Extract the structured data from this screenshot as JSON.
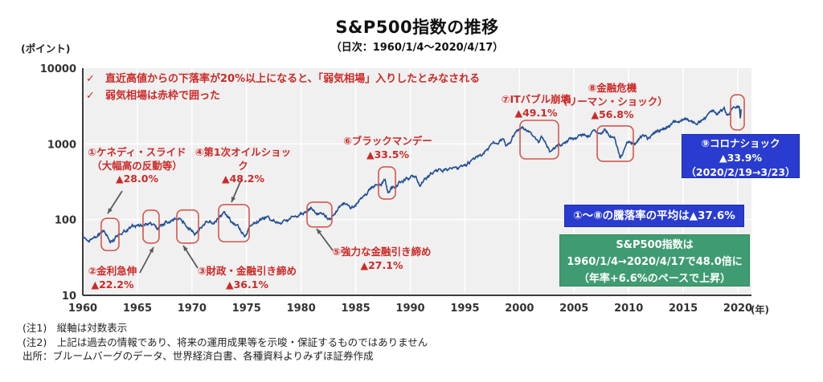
{
  "header": {
    "title": "S&P500指数の推移",
    "subtitle": "（日次：1960/1/4～2020/4/17）"
  },
  "bear_market_notes": {
    "check_icon": "✓",
    "lines": [
      "直近高値からの下落率が20%以上になると、「弱気相場」入りしたとみなされる",
      "弱気相場は赤枠で囲った"
    ]
  },
  "avg_box": {
    "text": "①～⑧の騰落率の平均は▲37.6%"
  },
  "corona_box": {
    "lines": [
      "⑨コロナショック",
      "▲33.9%",
      "（2020/2/19→3/23）"
    ]
  },
  "growth_box": {
    "lines": [
      "S&P500指数は",
      "1960/1/4→2020/4/17で48.0倍に",
      "（年率+6.6%のペースで上昇）"
    ]
  },
  "footnotes": {
    "lines": [
      "(注1)　縦軸は対数表示",
      "(注2)　上記は過去の情報であり、将来の運用成果等を示唆・保証するものではありません",
      "出所：ブルームバーグのデータ、世界経済白書、各種資料よりみずほ証券作成"
    ]
  },
  "colors": {
    "line": "#1f4e94",
    "red_text": "#cc2a27",
    "red_box": "#d4574e",
    "blue_box": "#2a3ccf",
    "green_box": "#3f9b72",
    "plot_bg": "#f0f0f0",
    "grid": "#ffffff",
    "axis": "#3c3c3c",
    "arrow": "#5a5a5a"
  },
  "chart_data": {
    "type": "line",
    "title": "S&P500指数の推移",
    "ylabel_unit": "(ポイント)",
    "xlabel_unit": "(年)",
    "y_scale": "log",
    "ylim": [
      10,
      10000
    ],
    "xlim": [
      1960,
      2021.25
    ],
    "y_ticks": [
      10000,
      1000,
      100,
      10
    ],
    "x_ticks": [
      1960,
      1965,
      1970,
      1975,
      1980,
      1985,
      1990,
      1995,
      2000,
      2005,
      2010,
      2015,
      2020
    ],
    "h_gridlines": [
      100,
      1000
    ],
    "legend_position": "none",
    "grid": true,
    "series": [
      {
        "name": "S&P500",
        "points": [
          [
            1960.0,
            59
          ],
          [
            1960.8,
            53
          ],
          [
            1961.9,
            72
          ],
          [
            1962.5,
            52.5
          ],
          [
            1963.3,
            65
          ],
          [
            1964.5,
            81
          ],
          [
            1966.1,
            93
          ],
          [
            1966.8,
            73.5
          ],
          [
            1967.7,
            96
          ],
          [
            1968.9,
            107
          ],
          [
            1970.4,
            69
          ],
          [
            1971.3,
            100
          ],
          [
            1971.9,
            93
          ],
          [
            1973.0,
            120
          ],
          [
            1974.8,
            63
          ],
          [
            1975.6,
            95
          ],
          [
            1976.7,
            106
          ],
          [
            1978.2,
            87
          ],
          [
            1979.8,
            110
          ],
          [
            1980.9,
            140
          ],
          [
            1982.6,
            102
          ],
          [
            1983.8,
            170
          ],
          [
            1984.6,
            150
          ],
          [
            1986.2,
            245
          ],
          [
            1987.7,
            335
          ],
          [
            1987.95,
            225
          ],
          [
            1988.3,
            258
          ],
          [
            1989.7,
            358
          ],
          [
            1990.5,
            365
          ],
          [
            1990.85,
            297
          ],
          [
            1991.9,
            415
          ],
          [
            1993.9,
            468
          ],
          [
            1994.5,
            445
          ],
          [
            1996.0,
            640
          ],
          [
            1997.5,
            940
          ],
          [
            1998.55,
            1186
          ],
          [
            1998.75,
            960
          ],
          [
            1999.5,
            1420
          ],
          [
            2000.2,
            1525
          ],
          [
            2000.9,
            1340
          ],
          [
            2001.75,
            970
          ],
          [
            2002.0,
            1160
          ],
          [
            2002.8,
            780
          ],
          [
            2003.2,
            850
          ],
          [
            2004.5,
            1120
          ],
          [
            2006.0,
            1290
          ],
          [
            2007.8,
            1560
          ],
          [
            2008.7,
            1200
          ],
          [
            2008.95,
            870
          ],
          [
            2009.2,
            680
          ],
          [
            2010.0,
            1120
          ],
          [
            2010.55,
            1025
          ],
          [
            2011.35,
            1360
          ],
          [
            2011.8,
            1120
          ],
          [
            2012.5,
            1380
          ],
          [
            2013.5,
            1650
          ],
          [
            2014.7,
            2000
          ],
          [
            2015.4,
            2120
          ],
          [
            2015.7,
            1880
          ],
          [
            2016.1,
            1840
          ],
          [
            2016.8,
            2180
          ],
          [
            2017.9,
            2680
          ],
          [
            2018.1,
            2590
          ],
          [
            2018.75,
            2925
          ],
          [
            2019.0,
            2350
          ],
          [
            2019.6,
            3010
          ],
          [
            2020.13,
            3386
          ],
          [
            2020.23,
            2237
          ],
          [
            2020.3,
            2875
          ]
        ]
      }
    ],
    "bear_boxes": [
      {
        "label": "①ケネディ・スライド",
        "years": [
          1961.69,
          1963.31
        ],
        "values": [
          39,
          104
        ]
      },
      {
        "label": "②金利急伸",
        "years": [
          1965.52,
          1966.99
        ],
        "values": [
          49,
          133
        ]
      },
      {
        "label": "③財政・金融引き締め",
        "years": [
          1968.61,
          1970.6
        ],
        "values": [
          49,
          134
        ]
      },
      {
        "label": "④第1次オイルショック",
        "years": [
          1972.44,
          1975.24
        ],
        "values": [
          51,
          158
        ]
      },
      {
        "label": "⑤強力な金融引き締め",
        "years": [
          1980.54,
          1982.82
        ],
        "values": [
          80,
          170
        ]
      },
      {
        "label": "⑥ブラックマンデー",
        "years": [
          1987.09,
          1988.64
        ],
        "values": [
          187,
          497
        ]
      },
      {
        "label": "⑦ITバブル崩壊",
        "years": [
          2000.05,
          2003.58
        ],
        "values": [
          634,
          2046
        ]
      },
      {
        "label": "⑧金融危機（リーマン・ショック）",
        "years": [
          2007.12,
          2010.43
        ],
        "values": [
          589,
          1726
        ]
      },
      {
        "label": "⑨コロナショック",
        "years": [
          2019.34,
          2020.59
        ],
        "values": [
          1528,
          4467
        ]
      }
    ],
    "annotations": [
      {
        "id": "1",
        "x": 108,
        "y": 182,
        "w": 125,
        "lines": [
          "①ケネディ・スライド",
          "（大幅高の反動等）",
          "▲28.0%"
        ],
        "arrow": [
          152,
          238,
          134,
          266
        ]
      },
      {
        "id": "2",
        "x": 105,
        "y": 330,
        "w": 70,
        "lines": [
          "②金利急伸",
          "▲22.2%"
        ],
        "arrow": [
          174,
          340,
          191,
          308
        ]
      },
      {
        "id": "3",
        "x": 245,
        "y": 330,
        "w": 125,
        "lines": [
          "③財政・金融引き締め",
          "▲36.1%"
        ],
        "arrow": [
          246,
          334,
          228,
          306
        ]
      },
      {
        "id": "4",
        "x": 240,
        "y": 182,
        "w": 125,
        "lines": [
          "④第1次オイルショック",
          "▲48.2%"
        ],
        "arrow": [
          301,
          222,
          288,
          252
        ]
      },
      {
        "id": "5",
        "x": 410,
        "y": 306,
        "w": 130,
        "lines": [
          "⑤強力な金融引き締め",
          "▲27.1%"
        ],
        "arrow": [
          414,
          312,
          394,
          285
        ]
      },
      {
        "id": "6",
        "x": 420,
        "y": 168,
        "w": 125,
        "lines": [
          "⑥ブラックマンデー",
          "▲33.5%"
        ]
      },
      {
        "id": "7",
        "x": 607,
        "y": 116,
        "w": 120,
        "lines": [
          "⑦ITバブル崩壊",
          "▲49.1%"
        ]
      },
      {
        "id": "8",
        "x": 692,
        "y": 102,
        "w": 140,
        "lines": [
          "⑧金融危機",
          "（リーマン・ショック）",
          "▲56.8%"
        ]
      }
    ]
  }
}
